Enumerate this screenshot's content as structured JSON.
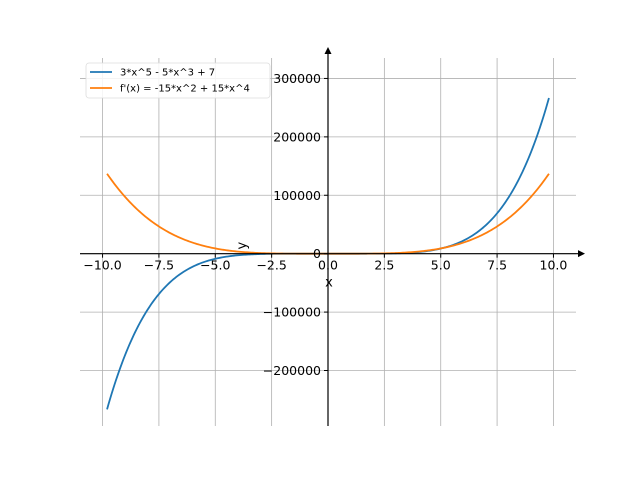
{
  "chart_data": {
    "type": "line",
    "xlabel": "x",
    "ylabel": "y",
    "xlim": [
      -11.0,
      11.0
    ],
    "ylim": [
      -295000,
      335000
    ],
    "x_ticks": [
      -10.0,
      -7.5,
      -5.0,
      -2.5,
      0.0,
      2.5,
      5.0,
      7.5,
      10.0
    ],
    "x_tick_labels": [
      "−10.0",
      "−7.5",
      "−5.0",
      "−2.5",
      "0.0",
      "2.5",
      "5.0",
      "7.5",
      "10.0"
    ],
    "y_ticks": [
      -200000,
      -100000,
      0,
      100000,
      200000,
      300000
    ],
    "y_tick_labels": [
      "−200000",
      "−100000",
      "0",
      "100000",
      "200000",
      "300000"
    ],
    "grid": true,
    "legend_position": "top-left",
    "x_range": [
      -9.8,
      9.8
    ],
    "series": [
      {
        "name": "3*x^5 - 5*x^3 + 7",
        "color": "#1f77b4",
        "expression": "3*x^5 - 5*x^3 + 7",
        "x": [
          -9.8,
          -9,
          -8,
          -7,
          -6,
          -5,
          -4,
          -3,
          -2,
          -1,
          0,
          1,
          2,
          3,
          4,
          5,
          6,
          7,
          8,
          9,
          9.8
        ],
        "y": [
          -265740,
          -173498,
          -95737,
          -48700,
          -22241,
          -8743,
          -2745,
          -587,
          -49,
          9,
          7,
          5,
          63,
          601,
          2759,
          8757,
          22255,
          48713,
          95751,
          173512,
          265754
        ]
      },
      {
        "name": "f'(x) = -15*x^2 + 15*x^4",
        "color": "#ff7f0e",
        "expression": "-15*x^2 + 15*x^4",
        "x": [
          -9.8,
          -9,
          -8,
          -7,
          -6,
          -5,
          -4,
          -3,
          -2,
          -1,
          0,
          1,
          2,
          3,
          4,
          5,
          6,
          7,
          8,
          9,
          9.8
        ],
        "y": [
          136898,
          97200,
          60480,
          35280,
          18900,
          9000,
          3600,
          1080,
          180,
          0,
          0,
          0,
          180,
          1080,
          3600,
          9000,
          18900,
          35280,
          60480,
          97200,
          136898
        ]
      }
    ]
  }
}
